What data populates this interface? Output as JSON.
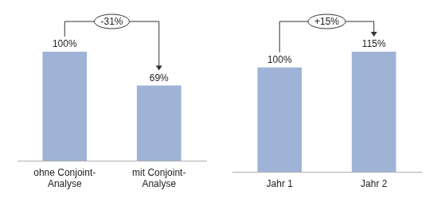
{
  "chart_data": [
    {
      "type": "bar",
      "categories": [
        "ohne Conjoint-Analyse",
        "mit Conjoint-Analyse"
      ],
      "values": [
        100,
        69
      ],
      "value_labels": [
        "100%",
        "69%"
      ],
      "color": "#9eb3d6",
      "data_labels": true,
      "tick_labels": "x",
      "grid": false,
      "annotations": [
        "-31%"
      ]
    },
    {
      "type": "bar",
      "categories": [
        "Jahr 1",
        "Jahr 2"
      ],
      "values": [
        100,
        115
      ],
      "value_labels": [
        "100%",
        "115%"
      ],
      "color": "#9eb3d6",
      "data_labels": true,
      "tick_labels": "x",
      "grid": false,
      "annotations": [
        "+15%"
      ]
    }
  ]
}
